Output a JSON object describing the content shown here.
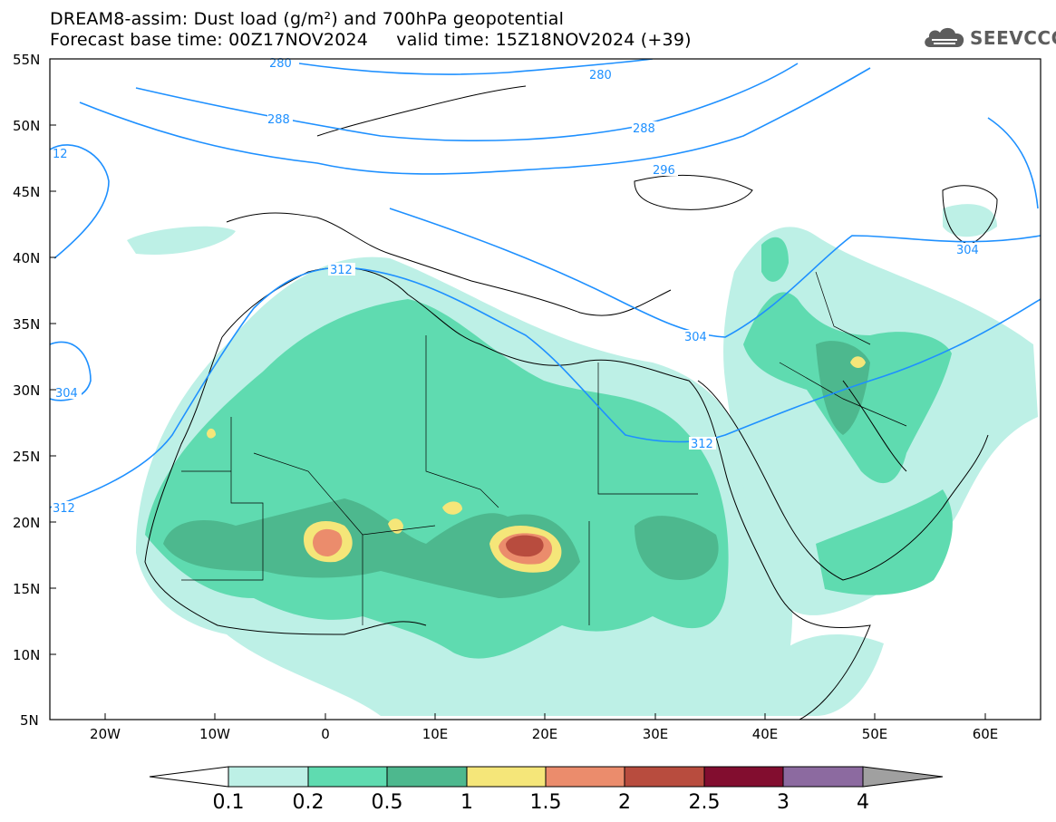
{
  "header": {
    "title_line1": "DREAM8-assim: Dust load (g/m²) and 700hPa geopotential",
    "title_line2": "Forecast base time: 00Z17NOV2024     valid time: 15Z18NOV2024 (+39)"
  },
  "logo": {
    "text": "SEEVCCC",
    "icon": "cloud-logo-icon"
  },
  "map": {
    "lon_range": [
      -25,
      65
    ],
    "lat_range": [
      5,
      55
    ],
    "lat_labels": [
      "55N",
      "50N",
      "45N",
      "40N",
      "35N",
      "30N",
      "25N",
      "20N",
      "15N",
      "10N",
      "5N"
    ],
    "lon_labels": [
      "20W",
      "10W",
      "0",
      "10E",
      "20E",
      "30E",
      "40E",
      "50E",
      "60E"
    ],
    "contour_labels": [
      "280",
      "288",
      "296",
      "304",
      "312",
      "280",
      "288",
      "296",
      "304",
      "312",
      "12",
      "312",
      "304"
    ],
    "contour_color": "#1e90ff"
  },
  "colorbar": {
    "labels": [
      "0.1",
      "0.2",
      "0.5",
      "1",
      "1.5",
      "2",
      "2.5",
      "3",
      "4"
    ],
    "colors": [
      "#bdf0e6",
      "#5fdbb0",
      "#4db88e",
      "#f5e679",
      "#eb8c6c",
      "#b84c3e",
      "#820d2f",
      "#8c6aa0"
    ],
    "under_color": "#ffffff",
    "over_color": "#a0a0a0"
  }
}
